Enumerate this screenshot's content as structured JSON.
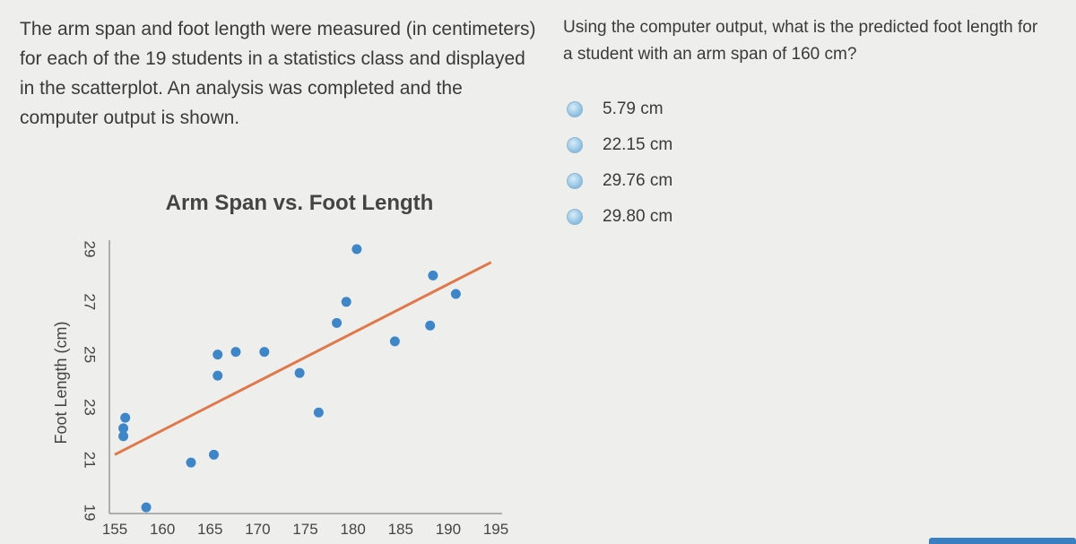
{
  "passage": "The arm span and foot length were measured (in centimeters) for each of the 19 students in a statistics class and displayed in the scatterplot. An analysis was completed and the computer output is shown.",
  "question": "Using the computer output, what is the predicted foot length for a student with an arm span of 160 cm?",
  "options": [
    "5.79 cm",
    "22.15 cm",
    "29.76 cm",
    "29.80 cm"
  ],
  "chart_data": {
    "type": "scatter",
    "title": "Arm Span vs. Foot Length",
    "y_label": "Foot Length (cm)",
    "x": [
      158.3,
      156.1,
      155.9,
      155.9,
      163,
      165.4,
      165.8,
      165.8,
      167.7,
      170.7,
      174.4,
      176.4,
      178.3,
      179.3,
      180.4,
      184.4,
      188.1,
      188.4,
      190.8
    ],
    "y": [
      19.2,
      22.6,
      22.2,
      21.9,
      20.9,
      21.2,
      24.2,
      25.0,
      25.1,
      25.1,
      24.3,
      22.8,
      26.2,
      27.0,
      29.0,
      25.5,
      26.1,
      28.0,
      27.3
    ],
    "color": "#3f86c8",
    "trend_line": {
      "x": [
        155,
        194.5
      ],
      "y": [
        21.2,
        28.5
      ],
      "color": "#e0784a"
    },
    "xlim": [
      155,
      195
    ],
    "ylim": [
      19,
      29
    ],
    "xticks": [
      155,
      160,
      165,
      170,
      175,
      180,
      185,
      190,
      195
    ],
    "yticks": [
      19,
      21,
      23,
      25,
      27,
      29
    ]
  }
}
